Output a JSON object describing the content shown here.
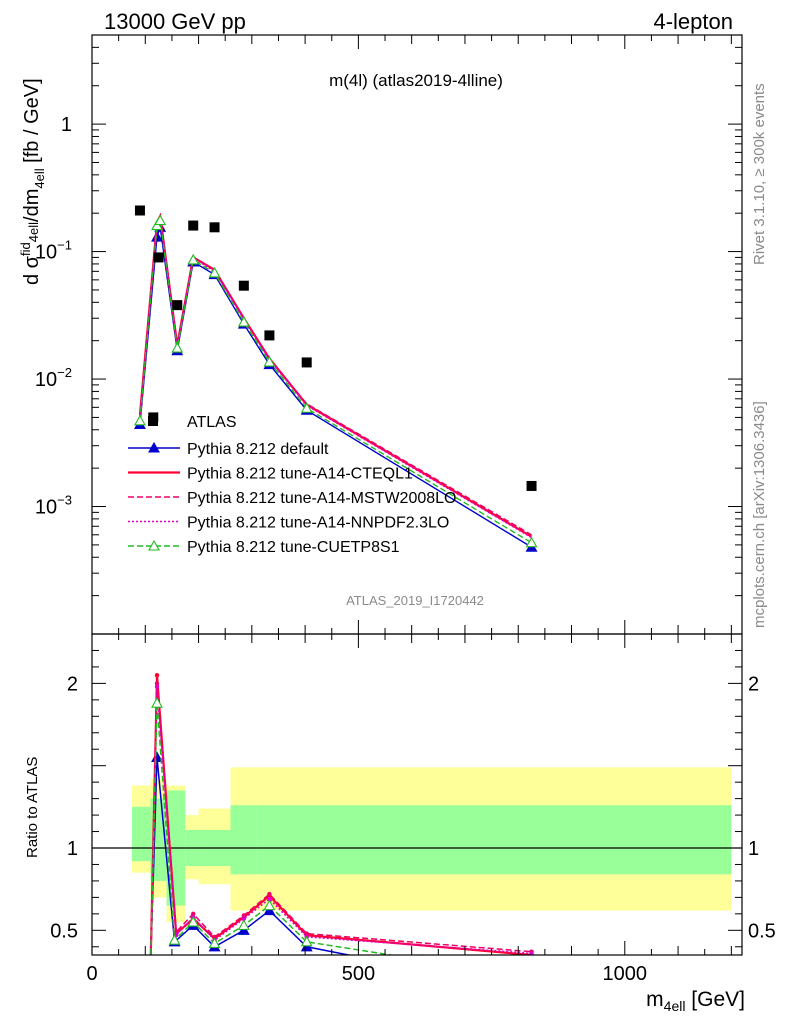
{
  "header": {
    "left": "13000 GeV pp",
    "right": "4-lepton",
    "plot_title": "m(4l) (atlas2019-4lline)",
    "analysis_id": "ATLAS_2019_I1720442",
    "side_rivet": "Rivet 3.1.10, ≥ 300k events",
    "side_mcplots": "mcplots.cern.ch [arXiv:1306.3436]"
  },
  "colors": {
    "atlas": "#000000",
    "default": "#0000cc",
    "cteql1": "#ff0033",
    "mstw": "#ee0066",
    "nnpdf": "#dd00cc",
    "cuetp8s1": "#22bb22",
    "band_inner": "#99ff99",
    "band_outer": "#ffff99"
  },
  "chart_data": [
    {
      "type": "line",
      "panel": "main",
      "ylabel": "dσfid4ell/dm4ell [fb / GeV]",
      "xlim": [
        0,
        1220
      ],
      "ylim": [
        0.0001,
        5
      ],
      "yscale": "log",
      "y_ticks": [
        {
          "value": 0.001,
          "base": "10",
          "exp": "−3"
        },
        {
          "value": 0.01,
          "base": "10",
          "exp": "−2"
        },
        {
          "value": 0.1,
          "base": "10",
          "exp": "−1"
        },
        {
          "value": 1,
          "base": "1",
          "exp": ""
        }
      ],
      "legend_position": "lower-left",
      "data": {
        "name": "ATLAS",
        "x": [
          90,
          115,
          125,
          160,
          190,
          230,
          285,
          333,
          403,
          825
        ],
        "y": [
          0.21,
          0.005,
          0.09,
          0.038,
          0.16,
          0.155,
          0.054,
          0.022,
          0.0135,
          0.00145
        ]
      },
      "mc_x": [
        90,
        122,
        128,
        160,
        190,
        230,
        285,
        333,
        403,
        825
      ],
      "series": [
        {
          "name": "Pythia 8.212 default",
          "key": "default",
          "style": "solid",
          "marker": "triangle-filled",
          "y": [
            0.0044,
            0.13,
            0.155,
            0.0167,
            0.083,
            0.066,
            0.027,
            0.013,
            0.0057,
            0.00048
          ]
        },
        {
          "name": "Pythia 8.212 tune-A14-CTEQL1",
          "key": "cteql1",
          "style": "solid",
          "marker": "",
          "y": [
            0.0052,
            0.17,
            0.19,
            0.0185,
            0.09,
            0.072,
            0.03,
            0.0145,
            0.0063,
            0.00058
          ]
        },
        {
          "name": "Pythia 8.212 tune-A14-MSTW2008LO",
          "key": "mstw",
          "style": "dashed",
          "marker": "",
          "y": [
            0.0051,
            0.168,
            0.188,
            0.0183,
            0.091,
            0.071,
            0.03,
            0.0144,
            0.0064,
            0.0006
          ]
        },
        {
          "name": "Pythia 8.212 tune-A14-NNPDF2.3LO",
          "key": "nnpdf",
          "style": "dotted",
          "marker": "",
          "y": [
            0.0049,
            0.165,
            0.183,
            0.018,
            0.089,
            0.07,
            0.0295,
            0.0142,
            0.0062,
            0.00057
          ]
        },
        {
          "name": "Pythia 8.212 tune-CUETP8S1",
          "key": "cuetp8s1",
          "style": "dashed",
          "marker": "triangle-open",
          "y": [
            0.0047,
            0.16,
            0.175,
            0.0175,
            0.086,
            0.068,
            0.028,
            0.0136,
            0.0059,
            0.00052
          ]
        }
      ]
    },
    {
      "type": "line",
      "panel": "ratio",
      "xlabel": "m4ell [GeV]",
      "ylabel": "Ratio to ATLAS",
      "xlim": [
        0,
        1220
      ],
      "ylim": [
        0.35,
        2.3
      ],
      "x_ticks": [
        0,
        500,
        1000
      ],
      "y_ticks": [
        0.5,
        1,
        2
      ],
      "band_edges": [
        75,
        110,
        140,
        175,
        200,
        260,
        310,
        1200
      ],
      "band_inner": [
        [
          0.92,
          1.25
        ],
        [
          0.8,
          1.3
        ],
        [
          0.65,
          1.35
        ],
        [
          0.89,
          1.11
        ],
        [
          0.89,
          1.11
        ],
        [
          0.84,
          1.26
        ],
        [
          0.84,
          1.26
        ]
      ],
      "band_outer": [
        [
          0.85,
          1.38
        ],
        [
          0.7,
          1.42
        ],
        [
          0.55,
          1.38
        ],
        [
          0.81,
          1.2
        ],
        [
          0.78,
          1.24
        ],
        [
          0.62,
          1.49
        ],
        [
          0.62,
          1.49
        ]
      ],
      "reference_line": 1,
      "series": [
        {
          "key": "default",
          "x": [
            110,
            122,
            155,
            190,
            230,
            285,
            333,
            403,
            560
          ],
          "y": [
            0.3,
            1.55,
            0.43,
            0.53,
            0.4,
            0.5,
            0.62,
            0.4,
            0.3
          ]
        },
        {
          "key": "cteql1",
          "x": [
            110,
            122,
            158,
            190,
            230,
            285,
            333,
            403,
            825
          ],
          "y": [
            0.3,
            2.05,
            0.48,
            0.57,
            0.45,
            0.58,
            0.71,
            0.47,
            0.35
          ]
        },
        {
          "key": "mstw",
          "x": [
            110,
            122,
            158,
            190,
            230,
            285,
            333,
            403,
            825
          ],
          "y": [
            0.3,
            2.0,
            0.49,
            0.6,
            0.46,
            0.59,
            0.72,
            0.48,
            0.37
          ]
        },
        {
          "key": "nnpdf",
          "x": [
            110,
            122,
            158,
            190,
            230,
            285,
            333,
            403,
            825
          ],
          "y": [
            0.3,
            1.98,
            0.47,
            0.58,
            0.44,
            0.57,
            0.69,
            0.46,
            0.36
          ]
        },
        {
          "key": "cuetp8s1",
          "x": [
            110,
            122,
            155,
            190,
            230,
            285,
            333,
            403,
            620
          ],
          "y": [
            0.3,
            1.88,
            0.44,
            0.55,
            0.42,
            0.53,
            0.65,
            0.43,
            0.32
          ]
        }
      ]
    }
  ]
}
